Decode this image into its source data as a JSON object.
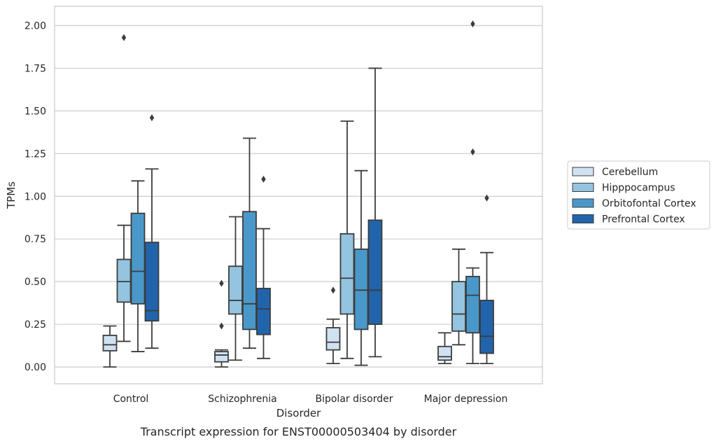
{
  "chart_data": {
    "type": "box",
    "xlabel": "Disorder",
    "ylabel": "TPMs",
    "caption": "Transcript expression for ENST00000503404 by disorder",
    "ylim": [
      -0.1,
      2.12
    ],
    "yticks": [
      "0.00",
      "0.25",
      "0.50",
      "0.75",
      "1.00",
      "1.25",
      "1.50",
      "1.75",
      "2.00"
    ],
    "ytick_values": [
      0,
      0.25,
      0.5,
      0.75,
      1.0,
      1.25,
      1.5,
      1.75,
      2.0
    ],
    "grid": "horizontal",
    "legend_position": "right",
    "categories": [
      "Control",
      "Schizophrenia",
      "Bipolar disorder",
      "Major depression"
    ],
    "series": [
      {
        "name": "Cerebellum",
        "color": "#d0e1f2",
        "boxes": [
          {
            "whislo": 0.0,
            "q1": 0.095,
            "med": 0.13,
            "q3": 0.185,
            "whishi": 0.24,
            "fliers": []
          },
          {
            "whislo": 0.0,
            "q1": 0.03,
            "med": 0.07,
            "q3": 0.09,
            "whishi": 0.1,
            "fliers": [
              0.24,
              0.49
            ]
          },
          {
            "whislo": 0.02,
            "q1": 0.1,
            "med": 0.145,
            "q3": 0.23,
            "whishi": 0.28,
            "fliers": [
              0.45
            ]
          },
          {
            "whislo": 0.02,
            "q1": 0.04,
            "med": 0.06,
            "q3": 0.12,
            "whishi": 0.2,
            "fliers": []
          }
        ]
      },
      {
        "name": "Hipppocampus",
        "color": "#94c4df",
        "boxes": [
          {
            "whislo": 0.15,
            "q1": 0.38,
            "med": 0.5,
            "q3": 0.63,
            "whishi": 0.83,
            "fliers": [
              1.93
            ]
          },
          {
            "whislo": 0.04,
            "q1": 0.31,
            "med": 0.39,
            "q3": 0.59,
            "whishi": 0.88,
            "fliers": []
          },
          {
            "whislo": 0.05,
            "q1": 0.31,
            "med": 0.52,
            "q3": 0.78,
            "whishi": 1.44,
            "fliers": []
          },
          {
            "whislo": 0.13,
            "q1": 0.21,
            "med": 0.31,
            "q3": 0.5,
            "whishi": 0.69,
            "fliers": []
          }
        ]
      },
      {
        "name": "Orbitofontal Cortex",
        "color": "#4a98c9",
        "boxes": [
          {
            "whislo": 0.09,
            "q1": 0.37,
            "med": 0.56,
            "q3": 0.9,
            "whishi": 1.09,
            "fliers": []
          },
          {
            "whislo": 0.11,
            "q1": 0.22,
            "med": 0.37,
            "q3": 0.91,
            "whishi": 1.34,
            "fliers": []
          },
          {
            "whislo": 0.01,
            "q1": 0.22,
            "med": 0.45,
            "q3": 0.69,
            "whishi": 1.15,
            "fliers": []
          },
          {
            "whislo": 0.02,
            "q1": 0.2,
            "med": 0.42,
            "q3": 0.53,
            "whishi": 0.58,
            "fliers": [
              1.26,
              2.01
            ]
          }
        ]
      },
      {
        "name": "Prefrontal Cortex",
        "color": "#2164ab",
        "boxes": [
          {
            "whislo": 0.11,
            "q1": 0.27,
            "med": 0.33,
            "q3": 0.73,
            "whishi": 1.16,
            "fliers": [
              1.46
            ]
          },
          {
            "whislo": 0.05,
            "q1": 0.19,
            "med": 0.34,
            "q3": 0.46,
            "whishi": 0.81,
            "fliers": [
              1.1
            ]
          },
          {
            "whislo": 0.06,
            "q1": 0.25,
            "med": 0.45,
            "q3": 0.86,
            "whishi": 1.75,
            "fliers": []
          },
          {
            "whislo": 0.02,
            "q1": 0.08,
            "med": 0.18,
            "q3": 0.39,
            "whishi": 0.67,
            "fliers": [
              0.99
            ]
          }
        ]
      }
    ]
  }
}
